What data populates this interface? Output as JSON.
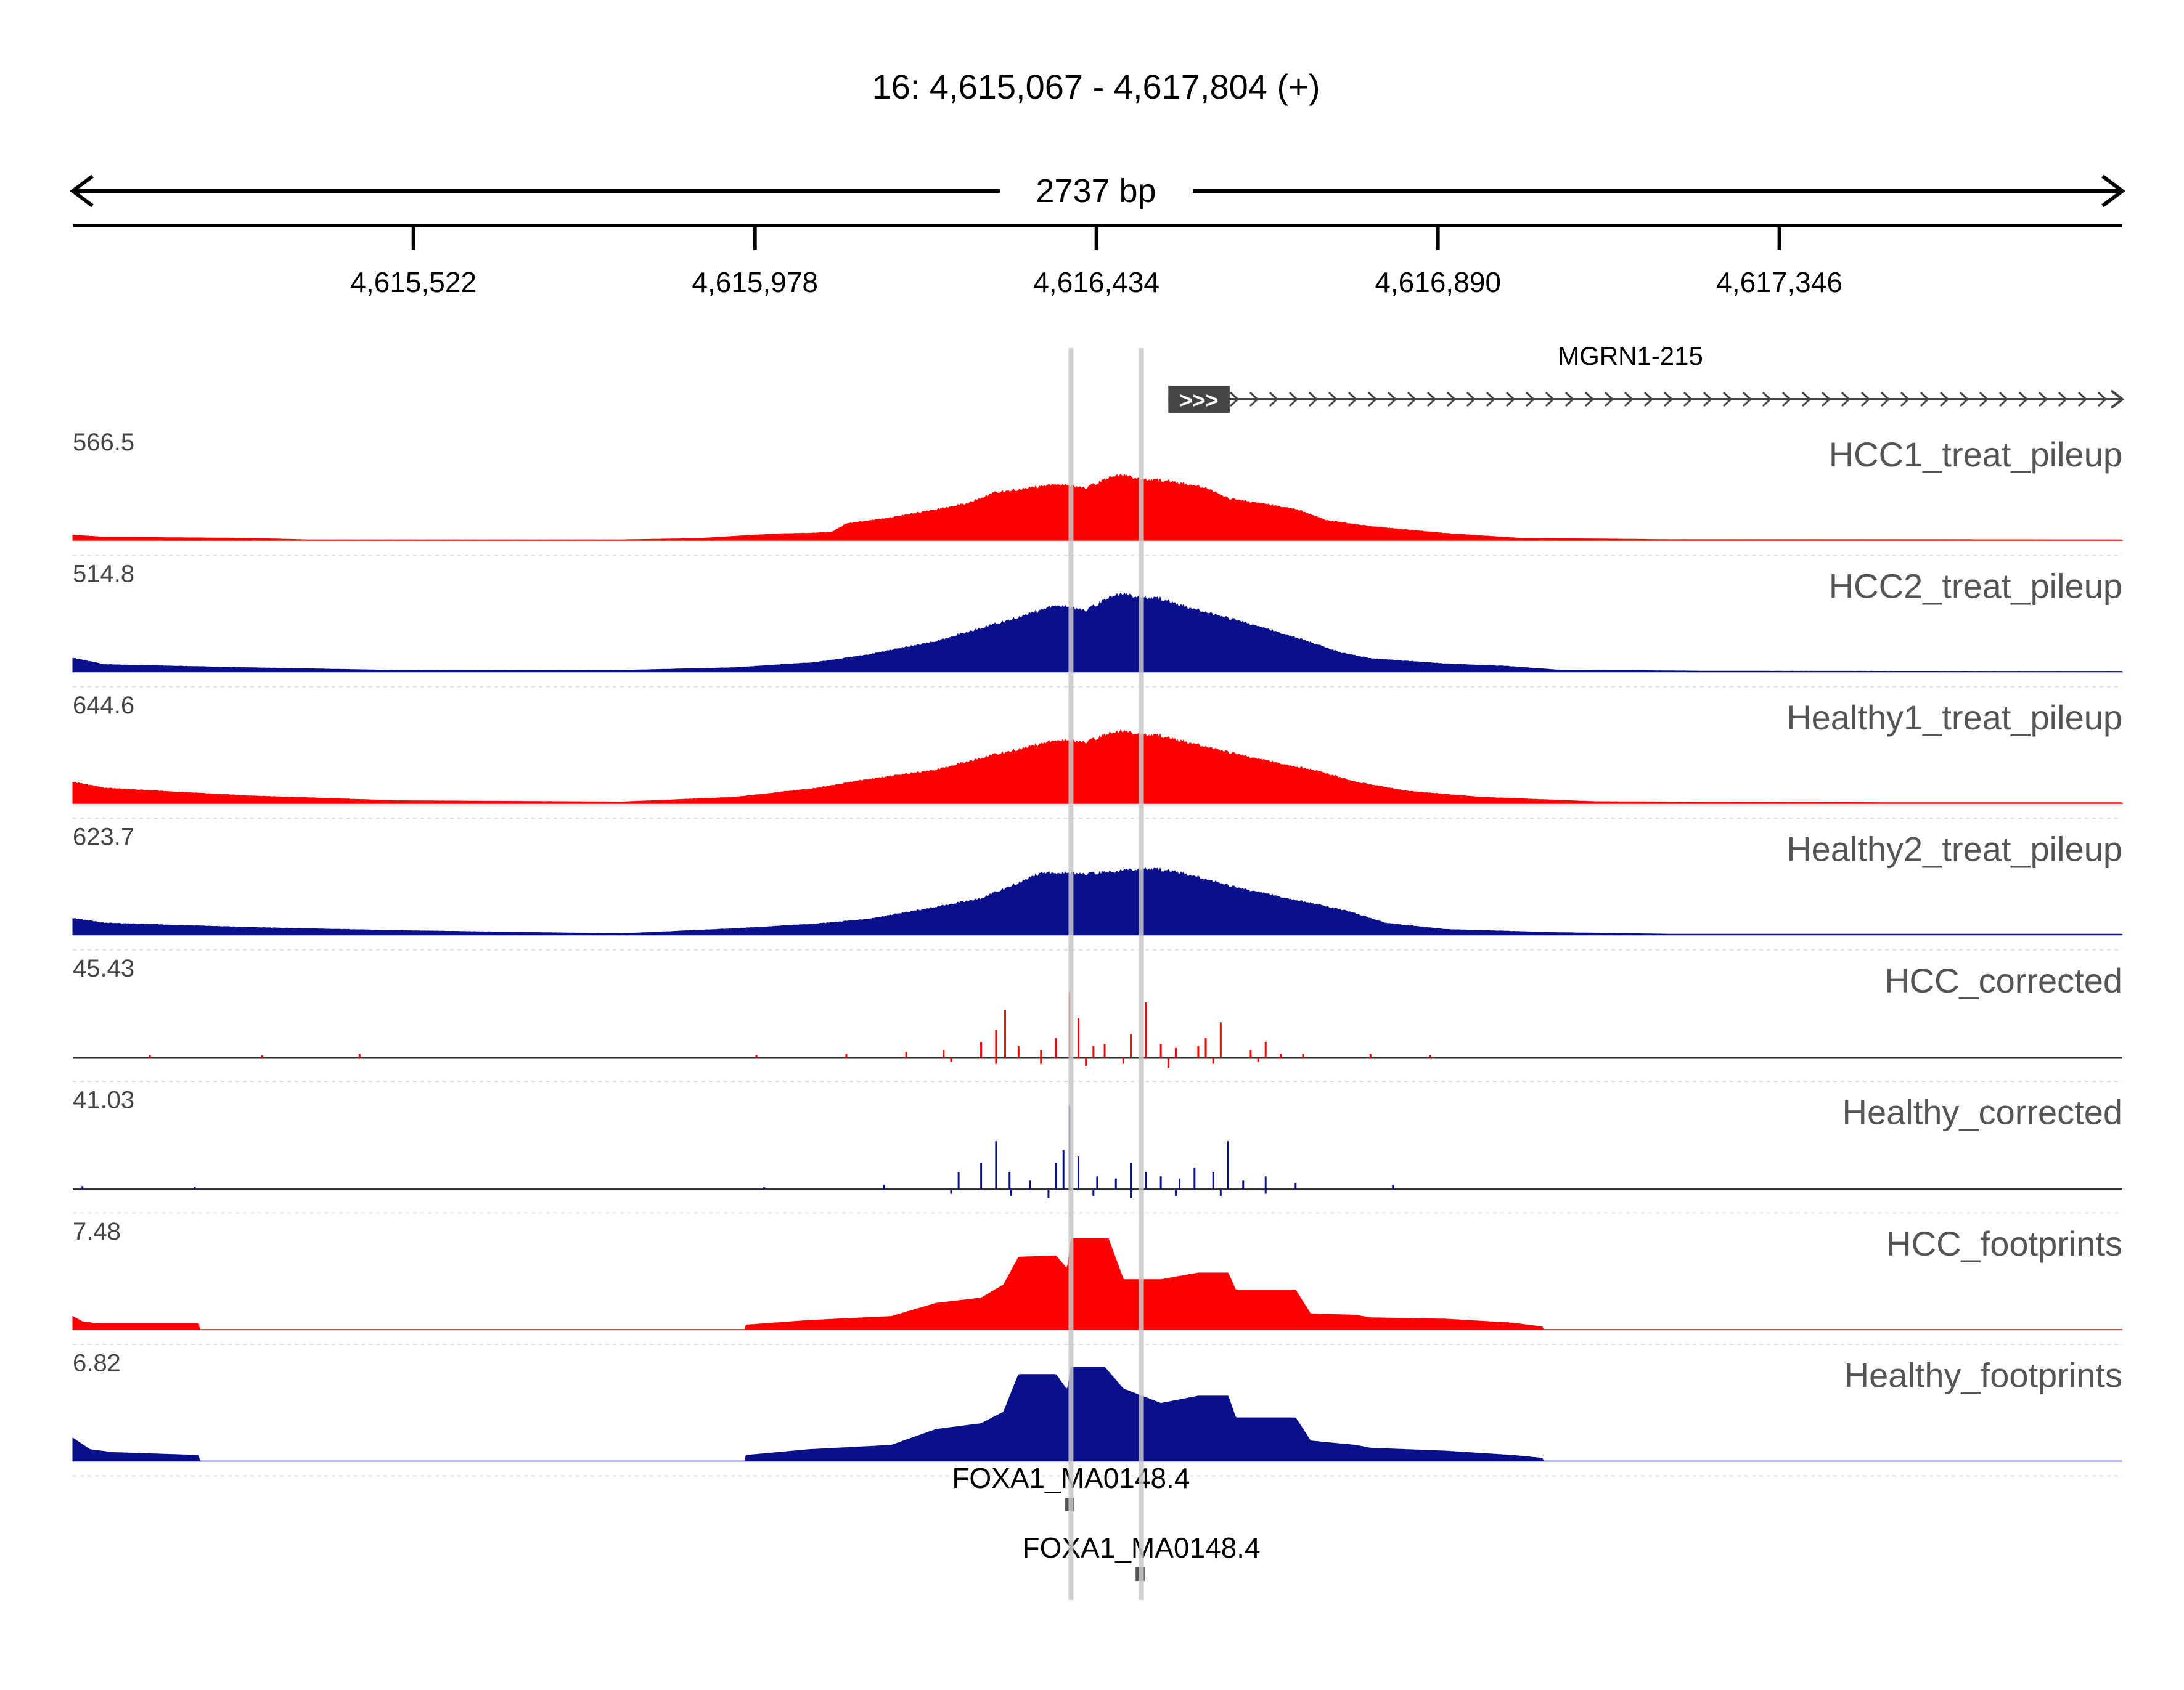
{
  "chart_data": {
    "type": "area",
    "title": "16: 4,615,067 - 4,617,804 (+)",
    "span_label": "2737 bp",
    "x_range": [
      4615067,
      4617804
    ],
    "x_ticks": [
      {
        "value": 4615522,
        "label": "4,615,522"
      },
      {
        "value": 4615978,
        "label": "4,615,978"
      },
      {
        "value": 4616434,
        "label": "4,616,434"
      },
      {
        "value": 4616890,
        "label": "4,616,890"
      },
      {
        "value": 4617346,
        "label": "4,617,346"
      }
    ],
    "gene": {
      "name": "MGRN1-215",
      "strand": "+",
      "start": 4616530,
      "end": 4617804,
      "exon": [
        4616530,
        4616612
      ],
      "exon_glyph": ">>>"
    },
    "highlights": [
      4616400,
      4616494
    ],
    "colors": {
      "red": "#ff0000",
      "blue": "#0a0f8c",
      "highlight": "#c8c8c8",
      "gene": "#444444",
      "motif": "#555555"
    },
    "tracks": [
      {
        "name": "HCC1_treat_pileup",
        "color": "#ff0000",
        "max_label": "566.5",
        "ymax": 566.5,
        "kind": "signal",
        "points": [
          [
            4615067,
            30
          ],
          [
            4615110,
            18
          ],
          [
            4615300,
            12
          ],
          [
            4615380,
            3
          ],
          [
            4615800,
            3
          ],
          [
            4615900,
            10
          ],
          [
            4616000,
            36
          ],
          [
            4616080,
            45
          ],
          [
            4616100,
            95
          ],
          [
            4616160,
            130
          ],
          [
            4616260,
            210
          ],
          [
            4616300,
            275
          ],
          [
            4616380,
            320
          ],
          [
            4616420,
            300
          ],
          [
            4616460,
            375
          ],
          [
            4616500,
            350
          ],
          [
            4616530,
            340
          ],
          [
            4616580,
            300
          ],
          [
            4616610,
            240
          ],
          [
            4616700,
            180
          ],
          [
            4616740,
            115
          ],
          [
            4616800,
            80
          ],
          [
            4616900,
            40
          ],
          [
            4617000,
            12
          ],
          [
            4617200,
            4
          ],
          [
            4617500,
            4
          ],
          [
            4617804,
            3
          ]
        ]
      },
      {
        "name": "HCC2_treat_pileup",
        "color": "#0a0f8c",
        "max_label": "514.8",
        "ymax": 514.8,
        "kind": "signal",
        "points": [
          [
            4615067,
            72
          ],
          [
            4615110,
            38
          ],
          [
            4615300,
            22
          ],
          [
            4615500,
            8
          ],
          [
            4615800,
            8
          ],
          [
            4615950,
            22
          ],
          [
            4616060,
            50
          ],
          [
            4616130,
            90
          ],
          [
            4616220,
            160
          ],
          [
            4616300,
            250
          ],
          [
            4616380,
            345
          ],
          [
            4616420,
            320
          ],
          [
            4616460,
            405
          ],
          [
            4616520,
            380
          ],
          [
            4616560,
            330
          ],
          [
            4616620,
            270
          ],
          [
            4616700,
            180
          ],
          [
            4616760,
            100
          ],
          [
            4616800,
            70
          ],
          [
            4616900,
            42
          ],
          [
            4616980,
            30
          ],
          [
            4617050,
            10
          ],
          [
            4617250,
            4
          ],
          [
            4617600,
            3
          ],
          [
            4617804,
            3
          ]
        ]
      },
      {
        "name": "Healthy1_treat_pileup",
        "color": "#ff0000",
        "max_label": "644.6",
        "ymax": 644.6,
        "kind": "signal",
        "points": [
          [
            4615067,
            140
          ],
          [
            4615110,
            100
          ],
          [
            4615300,
            50
          ],
          [
            4615500,
            18
          ],
          [
            4615800,
            10
          ],
          [
            4615950,
            40
          ],
          [
            4616060,
            100
          ],
          [
            4616120,
            150
          ],
          [
            4616220,
            220
          ],
          [
            4616300,
            320
          ],
          [
            4616380,
            410
          ],
          [
            4616420,
            400
          ],
          [
            4616460,
            470
          ],
          [
            4616520,
            440
          ],
          [
            4616570,
            380
          ],
          [
            4616640,
            300
          ],
          [
            4616730,
            210
          ],
          [
            4616780,
            140
          ],
          [
            4616850,
            80
          ],
          [
            4616950,
            40
          ],
          [
            4617100,
            12
          ],
          [
            4617500,
            5
          ],
          [
            4617804,
            5
          ]
        ]
      },
      {
        "name": "Healthy2_treat_pileup",
        "color": "#0a0f8c",
        "max_label": "623.7",
        "ymax": 623.7,
        "kind": "signal",
        "points": [
          [
            4615067,
            105
          ],
          [
            4615110,
            75
          ],
          [
            4615300,
            48
          ],
          [
            4615500,
            28
          ],
          [
            4615800,
            8
          ],
          [
            4615950,
            40
          ],
          [
            4616060,
            70
          ],
          [
            4616130,
            100
          ],
          [
            4616200,
            160
          ],
          [
            4616280,
            230
          ],
          [
            4616360,
            390
          ],
          [
            4616420,
            385
          ],
          [
            4616460,
            400
          ],
          [
            4616500,
            420
          ],
          [
            4616540,
            400
          ],
          [
            4616620,
            300
          ],
          [
            4616700,
            220
          ],
          [
            4616770,
            150
          ],
          [
            4616820,
            75
          ],
          [
            4616900,
            35
          ],
          [
            4617050,
            15
          ],
          [
            4617200,
            5
          ],
          [
            4617804,
            5
          ]
        ]
      },
      {
        "name": "HCC_corrected",
        "color": "#ff0000",
        "max_label": "45.43",
        "ymax": 45.43,
        "kind": "spikes",
        "spikes": [
          [
            4615170,
            1.5
          ],
          [
            4615320,
            1.2
          ],
          [
            4615450,
            2
          ],
          [
            4615980,
            1.5
          ],
          [
            4616100,
            2
          ],
          [
            4616180,
            3
          ],
          [
            4616230,
            4
          ],
          [
            4616280,
            8
          ],
          [
            4616300,
            14
          ],
          [
            4616312,
            24
          ],
          [
            4616330,
            6
          ],
          [
            4616360,
            4
          ],
          [
            4616380,
            10
          ],
          [
            4616398,
            33
          ],
          [
            4616410,
            20
          ],
          [
            4616430,
            6
          ],
          [
            4616445,
            7
          ],
          [
            4616480,
            12
          ],
          [
            4616500,
            28
          ],
          [
            4616520,
            7
          ],
          [
            4616540,
            5
          ],
          [
            4616570,
            6
          ],
          [
            4616580,
            10
          ],
          [
            4616600,
            18
          ],
          [
            4616640,
            4
          ],
          [
            4616660,
            8
          ],
          [
            4616680,
            2
          ],
          [
            4616710,
            2
          ],
          [
            4616800,
            2
          ],
          [
            4616880,
            1.5
          ]
        ],
        "neg": [
          [
            4616240,
            -2
          ],
          [
            4616300,
            -3
          ],
          [
            4616360,
            -3
          ],
          [
            4616420,
            -4
          ],
          [
            4616470,
            -3
          ],
          [
            4616530,
            -5
          ],
          [
            4616590,
            -3
          ],
          [
            4616650,
            -2
          ]
        ]
      },
      {
        "name": "Healthy_corrected",
        "color": "#0a0f8c",
        "max_label": "41.03",
        "ymax": 41.03,
        "kind": "spikes",
        "spikes": [
          [
            4615080,
            1.5
          ],
          [
            4615230,
            1
          ],
          [
            4615990,
            1
          ],
          [
            4616150,
            2
          ],
          [
            4616250,
            8
          ],
          [
            4616280,
            12
          ],
          [
            4616300,
            22
          ],
          [
            4616318,
            8
          ],
          [
            4616345,
            4
          ],
          [
            4616380,
            12
          ],
          [
            4616390,
            18
          ],
          [
            4616398,
            38
          ],
          [
            4616410,
            15
          ],
          [
            4616435,
            6
          ],
          [
            4616460,
            5
          ],
          [
            4616480,
            12
          ],
          [
            4616500,
            8
          ],
          [
            4616520,
            6
          ],
          [
            4616545,
            5
          ],
          [
            4616565,
            10
          ],
          [
            4616590,
            8
          ],
          [
            4616610,
            22
          ],
          [
            4616630,
            4
          ],
          [
            4616660,
            6
          ],
          [
            4616700,
            3
          ],
          [
            4616830,
            2
          ]
        ],
        "neg": [
          [
            4616240,
            -2
          ],
          [
            4616320,
            -3
          ],
          [
            4616370,
            -4
          ],
          [
            4616430,
            -3
          ],
          [
            4616480,
            -4
          ],
          [
            4616540,
            -3
          ],
          [
            4616600,
            -3
          ],
          [
            4616660,
            -2
          ]
        ]
      },
      {
        "name": "HCC_footprints",
        "color": "#ff0000",
        "max_label": "7.48",
        "ymax": 7.48,
        "kind": "signal",
        "points": [
          [
            4615067,
            1.0
          ],
          [
            4615080,
            0.6
          ],
          [
            4615100,
            0.45
          ],
          [
            4615235,
            0.45
          ],
          [
            4615236,
            0
          ],
          [
            4615965,
            0
          ],
          [
            4615966,
            0.35
          ],
          [
            4616050,
            0.7
          ],
          [
            4616160,
            1.0
          ],
          [
            4616220,
            2.0
          ],
          [
            4616280,
            2.4
          ],
          [
            4616310,
            3.4
          ],
          [
            4616330,
            5.5
          ],
          [
            4616380,
            5.6
          ],
          [
            4616395,
            4.6
          ],
          [
            4616400,
            6.9
          ],
          [
            4616450,
            6.9
          ],
          [
            4616470,
            3.8
          ],
          [
            4616520,
            3.8
          ],
          [
            4616570,
            4.3
          ],
          [
            4616610,
            4.3
          ],
          [
            4616620,
            3.0
          ],
          [
            4616700,
            3.0
          ],
          [
            4616720,
            1.2
          ],
          [
            4616780,
            1.1
          ],
          [
            4616800,
            0.9
          ],
          [
            4616900,
            0.8
          ],
          [
            4616990,
            0.5
          ],
          [
            4617030,
            0.2
          ],
          [
            4617031,
            0
          ]
        ]
      },
      {
        "name": "Healthy_footprints",
        "color": "#0a0f8c",
        "max_label": "6.82",
        "ymax": 6.82,
        "kind": "signal",
        "points": [
          [
            4615067,
            1.6
          ],
          [
            4615090,
            0.8
          ],
          [
            4615120,
            0.6
          ],
          [
            4615235,
            0.4
          ],
          [
            4615236,
            0
          ],
          [
            4615965,
            0
          ],
          [
            4615966,
            0.4
          ],
          [
            4616050,
            0.8
          ],
          [
            4616160,
            1.1
          ],
          [
            4616220,
            2.2
          ],
          [
            4616280,
            2.6
          ],
          [
            4616310,
            3.4
          ],
          [
            4616330,
            6.0
          ],
          [
            4616380,
            6.0
          ],
          [
            4616395,
            4.9
          ],
          [
            4616400,
            6.5
          ],
          [
            4616445,
            6.5
          ],
          [
            4616470,
            5.0
          ],
          [
            4616520,
            4.0
          ],
          [
            4616570,
            4.5
          ],
          [
            4616610,
            4.5
          ],
          [
            4616620,
            3.0
          ],
          [
            4616700,
            3.0
          ],
          [
            4616720,
            1.4
          ],
          [
            4616780,
            1.1
          ],
          [
            4616800,
            0.9
          ],
          [
            4616900,
            0.7
          ],
          [
            4616990,
            0.4
          ],
          [
            4617030,
            0.2
          ],
          [
            4617031,
            0
          ]
        ]
      }
    ],
    "motifs": [
      {
        "name": "FOXA1_MA0148.4",
        "start": 4616394,
        "end": 4616406
      },
      {
        "name": "FOXA1_MA0148.4",
        "start": 4616488,
        "end": 4616500
      }
    ]
  }
}
